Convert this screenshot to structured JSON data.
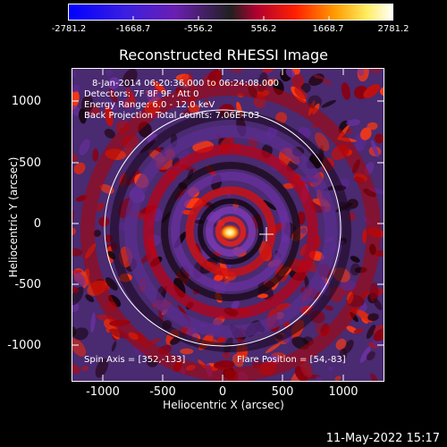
{
  "colorbar": {
    "ticks": [
      "-2781.2",
      "-1668.7",
      "-556.2",
      "556.2",
      "1668.7",
      "2781.2"
    ],
    "colors": [
      "#0000ff",
      "#3c1fe0",
      "#7a2fc0",
      "#b000a0",
      "#e01040",
      "#ff5000",
      "#ffb000",
      "#ffff80",
      "#ffffff"
    ]
  },
  "image": {
    "title": "Reconstructed RHESSI Image",
    "info_lines": [
      "8-Jan-2014 06:20:36.000 to 06:24:08.000",
      "Detectors: 7F 8F 9F, Att 0",
      "Energy Range: 6.0 - 12.0 keV",
      "Back Projection    Total counts: 7.06E+03"
    ],
    "spin_axis": "Spin Axis = [352,-133]",
    "flare_position": "Flare Position = [54,-83]"
  },
  "axes": {
    "xlabel": "Heliocentric X (arcsec)",
    "ylabel": "Heliocentric Y (arcsec)",
    "xticks": [
      "-1000",
      "-500",
      "0",
      "500",
      "1000"
    ],
    "yticks": [
      "1000",
      "500",
      "0",
      "-500",
      "-1000"
    ]
  },
  "timestamp": "11-May-2022 15:17"
}
